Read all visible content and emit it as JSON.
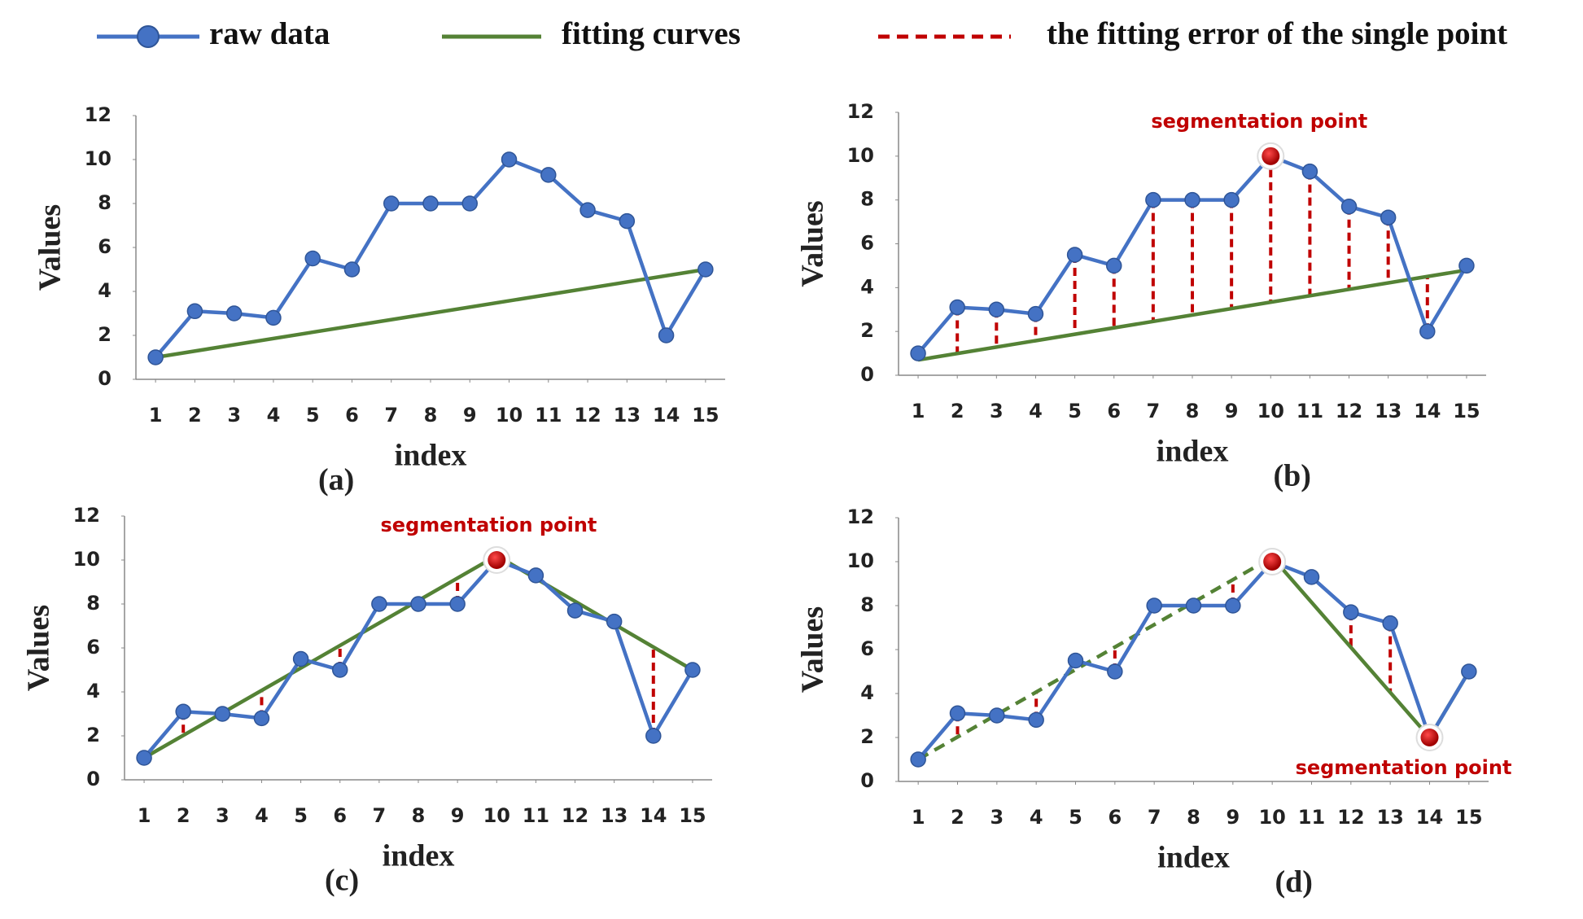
{
  "legend": [
    {
      "name": "raw data",
      "color": "#4472c4",
      "style": "line-marker"
    },
    {
      "name": "fitting curves",
      "color": "#548235",
      "style": "line"
    },
    {
      "name": "the fitting error of the single point",
      "color": "#c00000",
      "style": "dashed"
    }
  ],
  "chart_data": [
    {
      "type": "line",
      "panel_label": "(a)",
      "x_label": "index",
      "y_label": "Values",
      "x": [
        1,
        2,
        3,
        4,
        5,
        6,
        7,
        8,
        9,
        10,
        11,
        12,
        13,
        14,
        15
      ],
      "xlim": [
        0.5,
        15.5
      ],
      "xticks": [
        1,
        2,
        3,
        4,
        5,
        6,
        7,
        8,
        9,
        10,
        11,
        12,
        13,
        14,
        15
      ],
      "ylim": [
        0,
        12
      ],
      "yticks": [
        0,
        2,
        4,
        6,
        8,
        10,
        12
      ],
      "series": [
        {
          "color": "#4472c4",
          "values": [
            1,
            3.1,
            3,
            2.8,
            5.5,
            5,
            8,
            8,
            8,
            10,
            9.3,
            7.7,
            7.2,
            2,
            5
          ]
        }
      ],
      "fits": [
        {
          "color": "#548235",
          "dashed": false,
          "x": [
            1,
            15
          ],
          "values": [
            1,
            5
          ]
        }
      ],
      "error_color": "#c00000",
      "error_x": [],
      "segmentation_points": [],
      "annotation": null
    },
    {
      "type": "line",
      "panel_label": "(b)",
      "x_label": "index",
      "y_label": "Values",
      "x": [
        1,
        2,
        3,
        4,
        5,
        6,
        7,
        8,
        9,
        10,
        11,
        12,
        13,
        14,
        15
      ],
      "xlim": [
        0.5,
        15.5
      ],
      "xticks": [
        1,
        2,
        3,
        4,
        5,
        6,
        7,
        8,
        9,
        10,
        11,
        12,
        13,
        14,
        15
      ],
      "ylim": [
        0,
        12
      ],
      "yticks": [
        0,
        2,
        4,
        6,
        8,
        10,
        12
      ],
      "series": [
        {
          "color": "#4472c4",
          "values": [
            1,
            3.1,
            3,
            2.8,
            5.5,
            5,
            8,
            8,
            8,
            10,
            9.3,
            7.7,
            7.2,
            2,
            5
          ]
        }
      ],
      "fits": [
        {
          "color": "#548235",
          "dashed": false,
          "x": [
            1,
            15
          ],
          "values": [
            0.7,
            4.8
          ]
        }
      ],
      "error_color": "#c00000",
      "error_x": [
        2,
        3,
        4,
        5,
        6,
        7,
        8,
        9,
        10,
        11,
        12,
        13,
        14
      ],
      "segmentation_points": [
        10
      ],
      "annotation": "segmentation point"
    },
    {
      "type": "line",
      "panel_label": "(c)",
      "x_label": "index",
      "y_label": "Values",
      "x": [
        1,
        2,
        3,
        4,
        5,
        6,
        7,
        8,
        9,
        10,
        11,
        12,
        13,
        14,
        15
      ],
      "xlim": [
        0.5,
        15.5
      ],
      "xticks": [
        1,
        2,
        3,
        4,
        5,
        6,
        7,
        8,
        9,
        10,
        11,
        12,
        13,
        14,
        15
      ],
      "ylim": [
        0,
        12
      ],
      "yticks": [
        0,
        2,
        4,
        6,
        8,
        10,
        12
      ],
      "series": [
        {
          "color": "#4472c4",
          "values": [
            1,
            3.1,
            3,
            2.8,
            5.5,
            5,
            8,
            8,
            8,
            10,
            9.3,
            7.7,
            7.2,
            2,
            5
          ]
        }
      ],
      "fits": [
        {
          "color": "#548235",
          "dashed": false,
          "x": [
            1,
            10,
            15
          ],
          "values": [
            1,
            10.2,
            5
          ]
        }
      ],
      "error_color": "#c00000",
      "error_x": [
        2,
        4,
        6,
        9,
        14
      ],
      "segmentation_points": [
        10
      ],
      "annotation": "segmentation point"
    },
    {
      "type": "line",
      "panel_label": "(d)",
      "x_label": "index",
      "y_label": "Values",
      "x": [
        1,
        2,
        3,
        4,
        5,
        6,
        7,
        8,
        9,
        10,
        11,
        12,
        13,
        14,
        15
      ],
      "xlim": [
        0.5,
        15.5
      ],
      "xticks": [
        1,
        2,
        3,
        4,
        5,
        6,
        7,
        8,
        9,
        10,
        11,
        12,
        13,
        14,
        15
      ],
      "ylim": [
        0,
        12
      ],
      "yticks": [
        0,
        2,
        4,
        6,
        8,
        10,
        12
      ],
      "series": [
        {
          "color": "#4472c4",
          "values": [
            1,
            3.1,
            3,
            2.8,
            5.5,
            5,
            8,
            8,
            8,
            10,
            9.3,
            7.7,
            7.2,
            2,
            5
          ]
        }
      ],
      "fits": [
        {
          "color": "#548235",
          "dashed": true,
          "x": [
            1,
            10
          ],
          "values": [
            1,
            10.2
          ]
        },
        {
          "color": "#548235",
          "dashed": false,
          "x": [
            10,
            14,
            15
          ],
          "values": [
            10.2,
            2,
            5
          ]
        }
      ],
      "error_color": "#c00000",
      "error_x": [
        2,
        4,
        6,
        9,
        12,
        13
      ],
      "segmentation_points": [
        10,
        14
      ],
      "annotation": "segmentation point"
    }
  ]
}
